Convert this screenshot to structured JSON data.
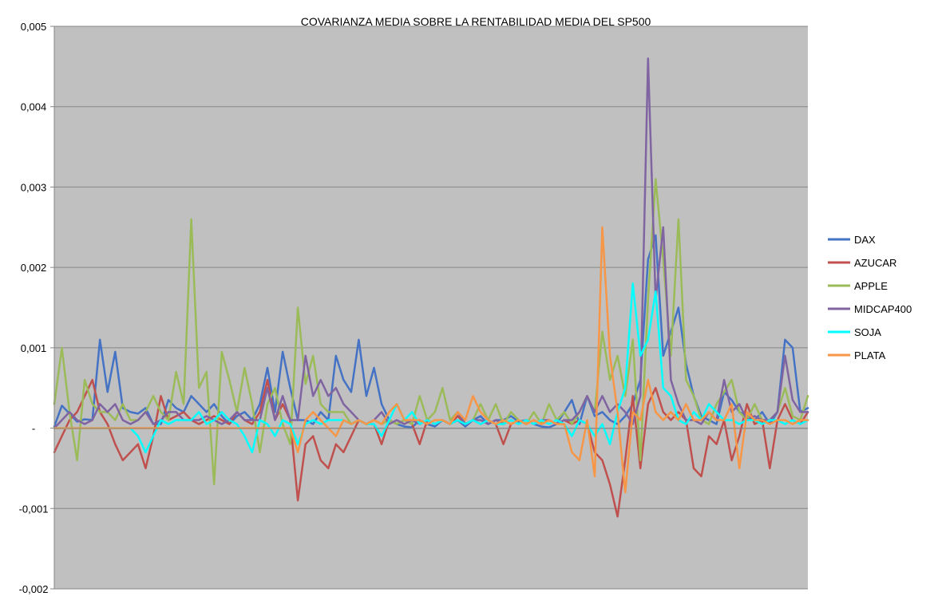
{
  "chart_data": {
    "type": "line",
    "title": "COVARIANZA MEDIA  SOBRE LA RENTABILIDAD MEDIA DEL SP500",
    "xlabel": "",
    "ylabel": "",
    "ylim": [
      -0.002,
      0.005
    ],
    "y_ticks": [
      {
        "value": 0.005,
        "label": "0,005"
      },
      {
        "value": 0.004,
        "label": "0,004"
      },
      {
        "value": 0.003,
        "label": "0,003"
      },
      {
        "value": 0.002,
        "label": "0,002"
      },
      {
        "value": 0.001,
        "label": "0,001"
      },
      {
        "value": 0.0,
        "label": "-"
      },
      {
        "value": -0.001,
        "label": "-0,001"
      },
      {
        "value": -0.002,
        "label": "-0,002"
      }
    ],
    "grid": true,
    "plot_background": "#C0C0C0",
    "legend_position": "right",
    "x_count": 100,
    "series": [
      {
        "name": "DAX",
        "color": "#4472C4",
        "values": [
          2e-05,
          0.00028,
          0.00018,
          8e-05,
          0.00011,
          0.0001,
          0.0011,
          0.00045,
          0.00095,
          0.00025,
          0.0002,
          0.00018,
          0.00025,
          5e-05,
          5e-05,
          0.00035,
          0.00025,
          0.0002,
          0.0004,
          0.0003,
          0.0002,
          0.0003,
          0.00015,
          5e-05,
          0.00015,
          0.0002,
          0.0001,
          0.0003,
          0.00075,
          0.0002,
          0.00095,
          0.0005,
          0.0001,
          0.0001,
          5e-05,
          0.0002,
          0.0001,
          0.0009,
          0.0006,
          0.00045,
          0.0011,
          0.0004,
          0.00075,
          0.0003,
          0.0001,
          5e-05,
          2e-05,
          1e-05,
          0.0001,
          5e-05,
          2e-05,
          0.0001,
          5e-05,
          0.0001,
          2e-05,
          0.0001,
          0.00015,
          5e-05,
          0.0001,
          0.0001,
          0.00015,
          8e-05,
          0.0001,
          5e-05,
          2e-05,
          1e-05,
          5e-05,
          0.0002,
          0.00035,
          5e-05,
          0.0004,
          0.00015,
          0.0002,
          0.0001,
          5e-05,
          0.00015,
          0.0003,
          0.0006,
          0.0021,
          0.0024,
          0.0009,
          0.0012,
          0.0015,
          0.0008,
          0.0004,
          0.00015,
          0.0001,
          5e-05,
          0.00045,
          0.00035,
          0.0002,
          0.00015,
          0.0001,
          0.0002,
          5e-05,
          0.0002,
          0.0011,
          0.001,
          0.0002,
          0.00025
        ]
      },
      {
        "name": "AZUCAR",
        "color": "#C0504D",
        "values": [
          -0.0003,
          -0.0001,
          0.0001,
          0.0002,
          0.0004,
          0.0006,
          0.0002,
          5e-05,
          -0.0002,
          -0.0004,
          -0.0003,
          -0.0002,
          -0.0005,
          -0.0001,
          0.0004,
          0.0001,
          0.00015,
          0.0002,
          0.0001,
          5e-05,
          0.0001,
          0.00015,
          0.0001,
          5e-05,
          0.0002,
          0.0001,
          5e-05,
          0.0002,
          0.0006,
          0.0001,
          0.0003,
          0.0001,
          -0.0009,
          -0.0002,
          -0.0001,
          -0.0004,
          -0.0005,
          -0.0002,
          -0.0003,
          -0.0001,
          0.0001,
          5e-05,
          5e-05,
          -0.0002,
          0.0001,
          5e-05,
          0.0001,
          5e-05,
          -0.0002,
          0.0001,
          5e-05,
          0.0001,
          5e-05,
          0.00015,
          5e-05,
          0.0001,
          5e-05,
          0.0001,
          5e-05,
          -0.0002,
          5e-05,
          0.0001,
          5e-05,
          0.0001,
          5e-05,
          0.0001,
          5e-05,
          0.0001,
          5e-05,
          0.0001,
          5e-05,
          -0.0003,
          -0.0004,
          -0.0007,
          -0.0011,
          -0.0004,
          0.0004,
          -0.0005,
          0.0003,
          0.0005,
          0.0002,
          0.0001,
          0.0002,
          0.0001,
          -0.0005,
          -0.0006,
          -0.0001,
          -0.0002,
          0.0001,
          -0.0004,
          -0.0001,
          0.0003,
          5e-05,
          0.0001,
          -0.0005,
          0.0001,
          0.0003,
          0.0001,
          5e-05,
          0.0002
        ]
      },
      {
        "name": "APPLE",
        "color": "#9BBB59",
        "values": [
          0.0003,
          0.001,
          0.0002,
          -0.0004,
          0.0006,
          0.0003,
          0.0002,
          0.0002,
          0.0001,
          0.0003,
          0.0001,
          0.0001,
          0.0002,
          0.0004,
          0.0002,
          0.0001,
          0.0007,
          0.0003,
          0.0026,
          0.0005,
          0.0007,
          -0.0007,
          0.00095,
          0.0006,
          0.0002,
          0.00075,
          0.0003,
          -0.0003,
          0.0003,
          0.0005,
          5e-05,
          -0.0002,
          0.0015,
          0.00055,
          0.0009,
          0.0003,
          0.0002,
          0.0002,
          0.0002,
          5e-05,
          0.0001,
          5e-05,
          0.0001,
          5e-05,
          0.0001,
          5e-05,
          0.0001,
          5e-05,
          0.0004,
          0.0001,
          0.0002,
          0.0005,
          0.0001,
          0.0002,
          5e-05,
          0.0001,
          0.0003,
          0.0001,
          0.0003,
          5e-05,
          0.0002,
          0.0001,
          5e-05,
          0.0002,
          5e-05,
          0.0003,
          0.0001,
          0.0002,
          5e-05,
          0.0002,
          0.0004,
          0.0002,
          0.0012,
          0.0006,
          0.0009,
          0.0004,
          0.0011,
          -0.0004,
          0.0016,
          0.0031,
          0.0021,
          0.0009,
          0.0026,
          0.0006,
          0.0004,
          0.0001,
          5e-05,
          0.0003,
          0.00045,
          0.0006,
          0.0002,
          0.0001,
          0.0003,
          0.0001,
          0.0001,
          0.0002,
          0.0005,
          0.00015,
          0.0001,
          0.0004
        ]
      },
      {
        "name": "MIDCAP400",
        "color": "#8064A2",
        "values": [
          0.0,
          0.0001,
          0.0002,
          0.0001,
          5e-05,
          0.0001,
          0.0003,
          0.0002,
          0.0003,
          0.0001,
          5e-05,
          0.0001,
          0.0002,
          5e-05,
          0.0001,
          0.0002,
          0.0002,
          0.0001,
          0.0001,
          0.0001,
          0.00015,
          0.0001,
          5e-05,
          0.0001,
          0.0002,
          0.0001,
          0.0001,
          0.0001,
          0.0005,
          0.0001,
          0.0004,
          0.0001,
          0.0001,
          0.0009,
          0.0004,
          0.0006,
          0.0004,
          0.0005,
          0.0003,
          0.0002,
          0.0001,
          5e-05,
          0.0001,
          0.0002,
          5e-05,
          0.0001,
          5e-05,
          0.0001,
          5e-05,
          0.0001,
          5e-05,
          0.0001,
          5e-05,
          0.0002,
          5e-05,
          0.0001,
          0.0001,
          5e-05,
          0.0001,
          5e-05,
          0.0001,
          5e-05,
          0.0001,
          5e-05,
          0.0001,
          0.0001,
          5e-05,
          0.0001,
          0.0001,
          0.0002,
          0.0004,
          0.0002,
          0.0004,
          0.0002,
          0.0003,
          0.0002,
          5e-05,
          0.0004,
          0.0046,
          0.0016,
          0.0025,
          0.0006,
          0.0003,
          0.0001,
          0.0001,
          5e-05,
          0.0002,
          0.0001,
          0.0006,
          0.0002,
          0.0003,
          0.0001,
          0.00015,
          0.0001,
          0.0001,
          0.0002,
          0.0009,
          0.00035,
          0.0002,
          0.0002
        ]
      },
      {
        "name": "SOJA",
        "color": "#00FFFF",
        "values": [
          0.0,
          0.0,
          0.0,
          0.0,
          0.0,
          0.0,
          0.0,
          0.0,
          0.0,
          0.0,
          0.0,
          -0.0001,
          -0.0003,
          -0.0001,
          0.0001,
          5e-05,
          0.0001,
          0.0001,
          0.0001,
          0.0002,
          5e-05,
          0.0001,
          0.0002,
          0.0001,
          5e-05,
          -0.0001,
          -0.0003,
          0.0001,
          5e-05,
          -0.0001,
          0.0001,
          5e-05,
          -0.0002,
          5e-05,
          0.0001,
          5e-05,
          0.0001,
          0.0001,
          0.0001,
          5e-05,
          0.0001,
          5e-05,
          5e-05,
          -0.0001,
          0.0001,
          0.0003,
          0.0001,
          0.0002,
          5e-05,
          0.0001,
          5e-05,
          0.0001,
          5e-05,
          0.0001,
          5e-05,
          0.0001,
          5e-05,
          0.0001,
          5e-05,
          5e-05,
          0.0001,
          5e-05,
          0.0001,
          5e-05,
          0.0001,
          5e-05,
          0.0001,
          5e-05,
          -0.0001,
          0.0001,
          5e-05,
          -0.0001,
          5e-05,
          -0.0002,
          0.0002,
          0.0005,
          0.0018,
          0.0009,
          0.0011,
          0.0017,
          0.0005,
          0.0004,
          0.0001,
          5e-05,
          0.0002,
          0.0001,
          0.0003,
          0.0002,
          0.0001,
          0.0001,
          5e-05,
          0.0001,
          0.0001,
          5e-05,
          0.0001,
          0.0001,
          5e-05,
          0.0001,
          5e-05,
          0.0001
        ]
      },
      {
        "name": "PLATA",
        "color": "#F79646",
        "values": [
          0.0,
          0.0,
          0.0,
          0.0,
          0.0,
          0.0,
          0.0,
          0.0,
          0.0,
          0.0,
          0.0,
          0.0,
          0.0,
          0.0,
          0.0,
          0.0,
          0.0,
          0.0,
          0.0,
          0.0,
          0.0,
          0.0,
          0.0,
          0.0,
          0.0,
          0.0,
          0.0,
          0.0,
          0.0,
          0.0,
          0.0,
          0.0,
          -0.0003,
          0.0001,
          0.0002,
          0.0001,
          0.0,
          -0.0001,
          0.0001,
          5e-05,
          0.0001,
          5e-05,
          0.0001,
          5e-05,
          0.0002,
          0.0003,
          0.0001,
          0.0001,
          0.0001,
          5e-05,
          0.0001,
          0.0001,
          5e-05,
          0.0002,
          0.0001,
          0.0004,
          0.0002,
          0.0001,
          5e-05,
          0.0001,
          5e-05,
          0.0001,
          5e-05,
          0.0001,
          5e-05,
          0.0001,
          5e-05,
          5e-05,
          -0.0003,
          -0.0004,
          0.0001,
          -0.0006,
          0.0025,
          0.0009,
          0.0002,
          -0.0008,
          0.0002,
          0.0001,
          0.0006,
          0.0002,
          0.0001,
          0.0002,
          0.0001,
          0.0003,
          0.0001,
          0.0001,
          0.0002,
          0.0001,
          0.0001,
          0.0003,
          -0.0005,
          0.0002,
          0.0001,
          0.0001,
          5e-05,
          0.0001,
          0.0001,
          5e-05,
          0.0001,
          0.0001
        ]
      }
    ]
  }
}
